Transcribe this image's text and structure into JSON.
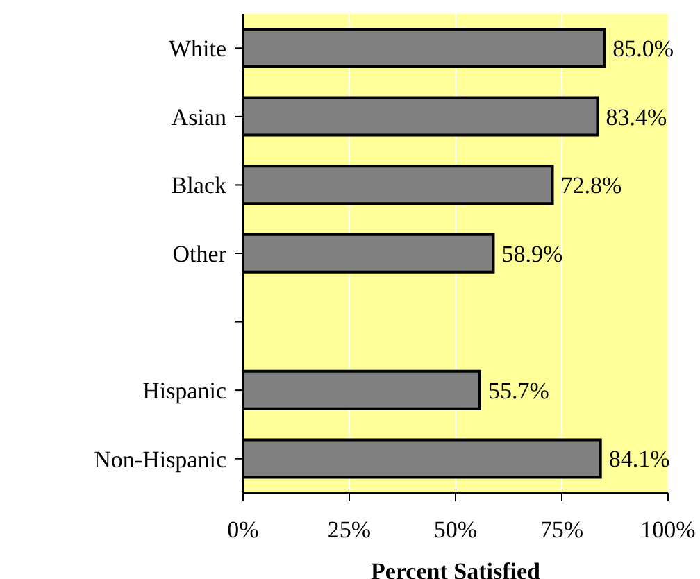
{
  "chart_data": {
    "type": "bar",
    "orientation": "horizontal",
    "xlabel": "Percent Satisfied",
    "categories": [
      "White",
      "Asian",
      "Black",
      "Other",
      null,
      "Hispanic",
      "Non-Hispanic"
    ],
    "values": [
      85.0,
      83.4,
      72.8,
      58.9,
      null,
      55.7,
      84.1
    ],
    "value_labels": [
      "85.0%",
      "83.4%",
      "72.8%",
      "58.9%",
      null,
      "55.7%",
      "84.1%"
    ],
    "color": "#808080",
    "xlim": [
      0,
      100
    ],
    "xticks": [
      {
        "value": 0,
        "label": "0%"
      },
      {
        "value": 25,
        "label": "25%"
      },
      {
        "value": 50,
        "label": "50%"
      },
      {
        "value": 75,
        "label": "75%"
      },
      {
        "value": 100,
        "label": "100%"
      }
    ],
    "grid": "x"
  }
}
